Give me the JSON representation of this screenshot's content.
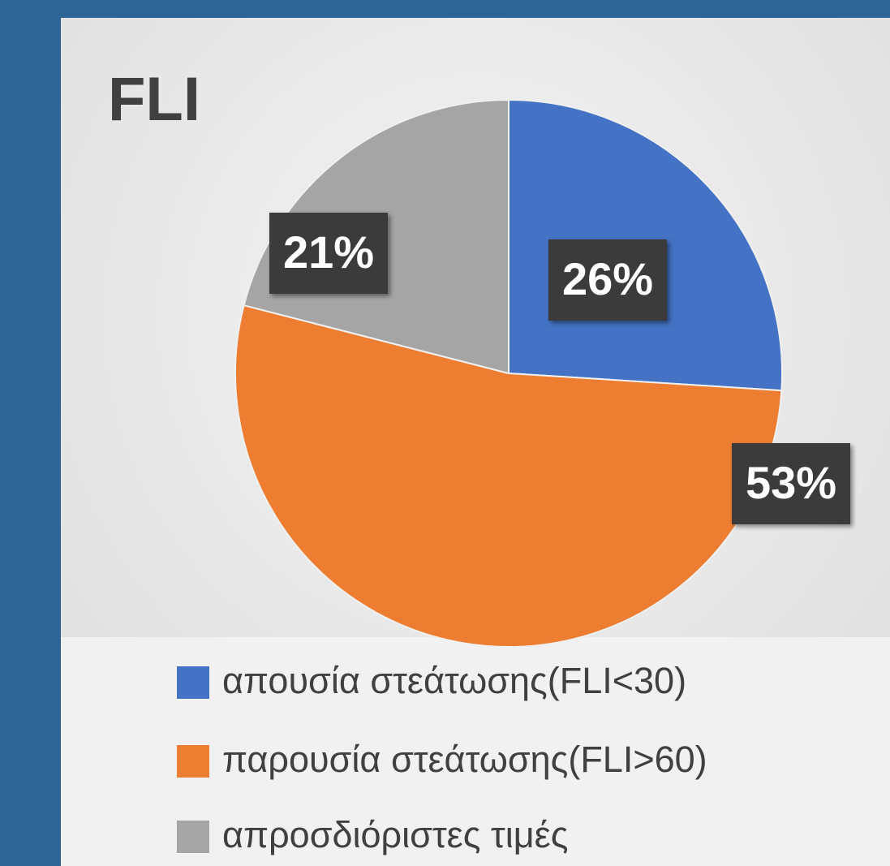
{
  "chart_data": {
    "type": "pie",
    "title": "FLI",
    "categories": [
      "απουσία στεάτωσης(FLI<30)",
      "παρουσία στεάτωσης(FLI>60)",
      "απροσδιόριστες τιμές"
    ],
    "values": [
      26,
      53,
      21
    ],
    "value_labels": [
      "26%",
      "53%",
      "21%"
    ],
    "colors": [
      "#4472c4",
      "#ed7d31",
      "#a5a5a5"
    ]
  }
}
